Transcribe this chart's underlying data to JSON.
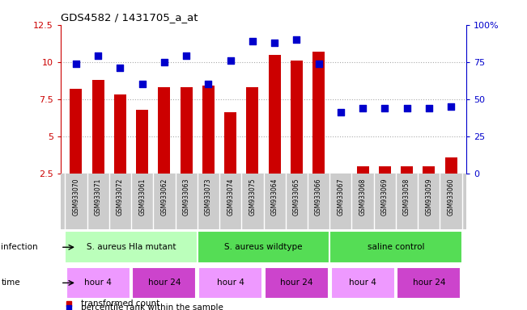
{
  "title": "GDS4582 / 1431705_a_at",
  "samples": [
    "GSM933070",
    "GSM933071",
    "GSM933072",
    "GSM933061",
    "GSM933062",
    "GSM933063",
    "GSM933073",
    "GSM933074",
    "GSM933075",
    "GSM933064",
    "GSM933065",
    "GSM933066",
    "GSM933067",
    "GSM933068",
    "GSM933069",
    "GSM933058",
    "GSM933059",
    "GSM933060"
  ],
  "bar_values": [
    8.2,
    8.8,
    7.8,
    6.8,
    8.3,
    8.3,
    8.4,
    6.6,
    8.3,
    10.5,
    10.1,
    10.7,
    2.5,
    3.0,
    3.0,
    3.0,
    3.0,
    3.6
  ],
  "dot_values_pct": [
    74,
    79,
    71,
    60,
    75,
    79,
    60,
    76,
    89,
    88,
    90,
    74,
    41,
    44,
    44,
    44,
    44,
    45
  ],
  "bar_color": "#cc0000",
  "dot_color": "#0000cc",
  "ylim_left": [
    2.5,
    12.5
  ],
  "ylim_right": [
    0,
    100
  ],
  "yticks_left": [
    2.5,
    5.0,
    7.5,
    10.0,
    12.5
  ],
  "yticks_right": [
    0,
    25,
    50,
    75,
    100
  ],
  "ytick_labels_left": [
    "2.5",
    "5",
    "7.5",
    "10",
    "12.5"
  ],
  "ytick_labels_right": [
    "0",
    "25",
    "50",
    "75",
    "100%"
  ],
  "infection_groups": [
    {
      "label": "S. aureus Hla mutant",
      "start": 0,
      "end": 6,
      "color": "#bbffbb"
    },
    {
      "label": "S. aureus wildtype",
      "start": 6,
      "end": 12,
      "color": "#55dd55"
    },
    {
      "label": "saline control",
      "start": 12,
      "end": 18,
      "color": "#55dd55"
    }
  ],
  "time_groups": [
    {
      "label": "hour 4",
      "start": 0,
      "end": 3,
      "color": "#ee99ff"
    },
    {
      "label": "hour 24",
      "start": 3,
      "end": 6,
      "color": "#cc44cc"
    },
    {
      "label": "hour 4",
      "start": 6,
      "end": 9,
      "color": "#ee99ff"
    },
    {
      "label": "hour 24",
      "start": 9,
      "end": 12,
      "color": "#cc44cc"
    },
    {
      "label": "hour 4",
      "start": 12,
      "end": 15,
      "color": "#ee99ff"
    },
    {
      "label": "hour 24",
      "start": 15,
      "end": 18,
      "color": "#cc44cc"
    }
  ],
  "legend_bar_label": "transformed count",
  "legend_dot_label": "percentile rank within the sample",
  "infection_label": "infection",
  "time_label": "time",
  "grid_color": "#aaaaaa",
  "bar_width": 0.55,
  "dot_size": 28,
  "tick_label_bg": "#cccccc"
}
